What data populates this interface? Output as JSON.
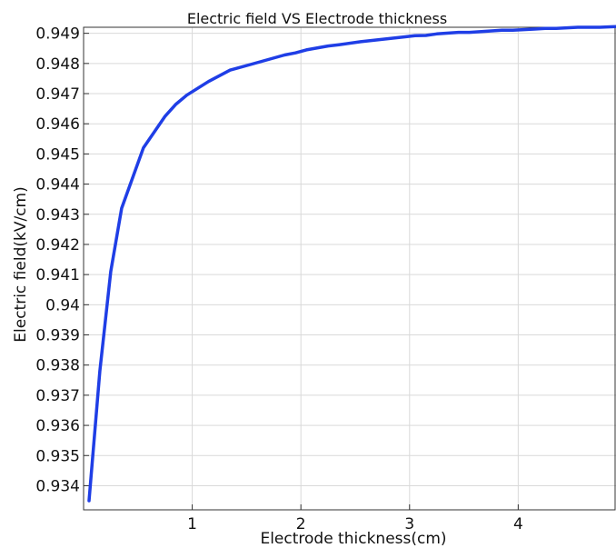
{
  "chart_data": {
    "type": "line",
    "title": "Electric field VS Electrode thickness",
    "xlabel": "Electrode thickness(cm)",
    "ylabel": "Electric field(kV/cm)",
    "xlim": [
      0.0,
      4.9
    ],
    "ylim": [
      0.9332,
      0.9492
    ],
    "x_ticks": [
      1,
      2,
      3,
      4
    ],
    "x_tick_labels": [
      "1",
      "2",
      "3",
      "4"
    ],
    "y_ticks": [
      0.934,
      0.935,
      0.936,
      0.937,
      0.938,
      0.939,
      0.94,
      0.941,
      0.942,
      0.943,
      0.944,
      0.945,
      0.946,
      0.947,
      0.948,
      0.949
    ],
    "y_tick_labels": [
      "0.934",
      "0.935",
      "0.936",
      "0.937",
      "0.938",
      "0.939",
      "0.94",
      "0.941",
      "0.942",
      "0.943",
      "0.944",
      "0.945",
      "0.946",
      "0.947",
      "0.948",
      "0.949"
    ],
    "grid": true,
    "series": [
      {
        "color": "#1f3ee6",
        "x": [
          0.05,
          0.15,
          0.25,
          0.35,
          0.55,
          0.75,
          0.85,
          0.95,
          1.15,
          1.35,
          1.55,
          1.85,
          1.95,
          2.05,
          2.25,
          2.35,
          2.55,
          2.75,
          2.95,
          3.05,
          3.15,
          3.25,
          3.45,
          3.55,
          3.85,
          3.95,
          4.15,
          4.25,
          4.35,
          4.55,
          4.75,
          4.9
        ],
        "y": [
          0.9335,
          0.9378,
          0.9411,
          0.9432,
          0.9452,
          0.94625,
          0.94665,
          0.94695,
          0.9474,
          0.94778,
          0.94798,
          0.94828,
          0.94835,
          0.94845,
          0.94858,
          0.94862,
          0.94872,
          0.9488,
          0.94888,
          0.94892,
          0.94893,
          0.94898,
          0.94903,
          0.94903,
          0.9491,
          0.9491,
          0.94914,
          0.94916,
          0.94916,
          0.9492,
          0.9492,
          0.94922
        ]
      }
    ]
  }
}
